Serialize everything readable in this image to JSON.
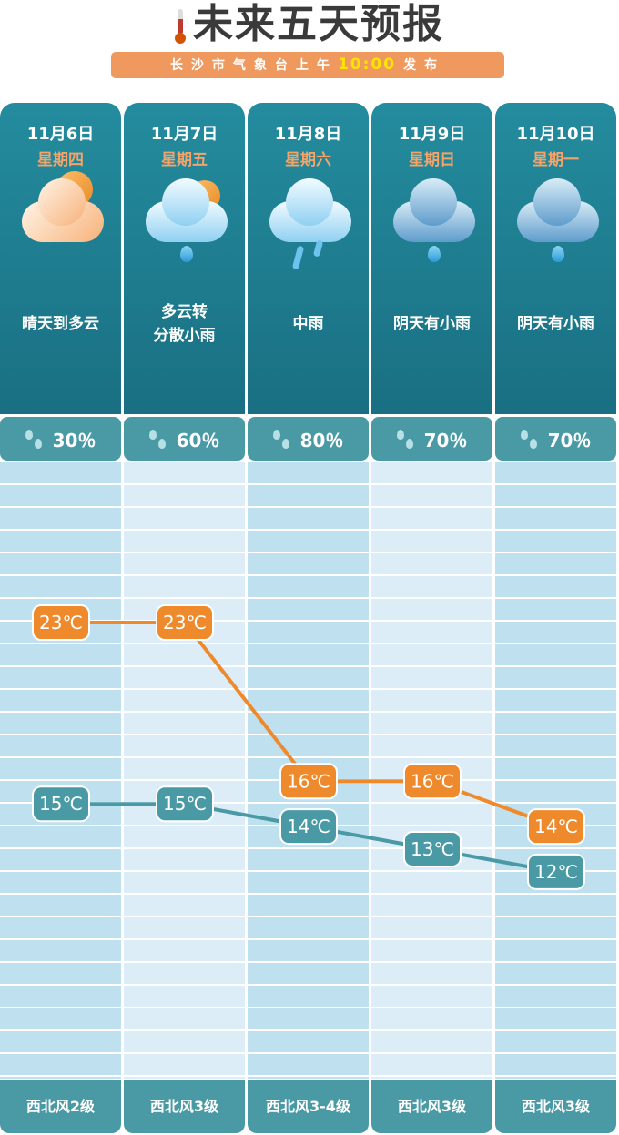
{
  "header": {
    "title": "未来五天预报",
    "subtitle_prefix": "长沙市气象台上午",
    "subtitle_time": "10:00",
    "subtitle_suffix": "发布"
  },
  "days": [
    {
      "date": "11月6日",
      "weekday": "星期四",
      "condition_lines": [
        "晴天到多云"
      ],
      "icon": "partly-cloudy-icon",
      "rain_chance": "30％",
      "wind": "西北风2级",
      "high": "23℃",
      "low": "15℃"
    },
    {
      "date": "11月7日",
      "weekday": "星期五",
      "condition_lines": [
        "多云转",
        "分散小雨"
      ],
      "icon": "cloudy-light-rain-icon",
      "rain_chance": "60％",
      "wind": "西北风3级",
      "high": "23℃",
      "low": "15℃"
    },
    {
      "date": "11月8日",
      "weekday": "星期六",
      "condition_lines": [
        "中雨"
      ],
      "icon": "moderate-rain-icon",
      "rain_chance": "80％",
      "wind": "西北风3-4级",
      "high": "16℃",
      "low": "14℃"
    },
    {
      "date": "11月9日",
      "weekday": "星期日",
      "condition_lines": [
        "阴天有小雨"
      ],
      "icon": "overcast-light-rain-icon",
      "rain_chance": "70％",
      "wind": "西北风3级",
      "high": "16℃",
      "low": "13℃"
    },
    {
      "date": "11月10日",
      "weekday": "星期一",
      "condition_lines": [
        "阴天有小雨"
      ],
      "icon": "overcast-light-rain-icon",
      "rain_chance": "70％",
      "wind": "西北风3级",
      "high": "14℃",
      "low": "12℃"
    }
  ],
  "chart_data": {
    "type": "line",
    "categories": [
      "11月6日",
      "11月7日",
      "11月8日",
      "11月9日",
      "11月10日"
    ],
    "series": [
      {
        "values": [
          23,
          23,
          16,
          16,
          14
        ],
        "color": "#ee8a2c"
      },
      {
        "values": [
          15,
          15,
          14,
          13,
          12
        ],
        "color": "#4a9aa6"
      }
    ],
    "unit": "℃"
  },
  "colors": {
    "card": "#1f7f92",
    "accent": "#f0995e",
    "high": "#ee8a2c",
    "low": "#4a9aa6"
  }
}
